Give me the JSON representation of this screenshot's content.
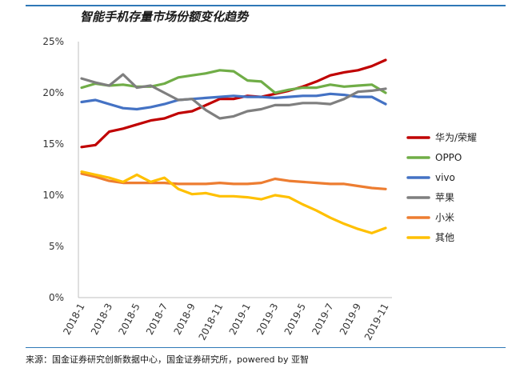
{
  "header": {
    "title": "智能手机存量市场份额变化趋势"
  },
  "footer": {
    "source": "来源：国金证券研究创新数据中心，国金证券研究所，powered by 亚智"
  },
  "chart_data": {
    "type": "line",
    "title": "智能手机存量市场份额变化趋势",
    "xlabel": "",
    "ylabel": "",
    "ylim": [
      0,
      25
    ],
    "y_ticks": [
      "0%",
      "5%",
      "10%",
      "15%",
      "20%",
      "25%"
    ],
    "y_tick_values": [
      0,
      5,
      10,
      15,
      20,
      25
    ],
    "x": [
      "2018-1",
      "2018-2",
      "2018-3",
      "2018-4",
      "2018-5",
      "2018-6",
      "2018-7",
      "2018-8",
      "2018-9",
      "2018-10",
      "2018-11",
      "2018-12",
      "2019-1",
      "2019-2",
      "2019-3",
      "2019-4",
      "2019-5",
      "2019-6",
      "2019-7",
      "2019-8",
      "2019-9",
      "2019-10",
      "2019-11"
    ],
    "x_tick_labels": [
      "2018-1",
      "2018-3",
      "2018-5",
      "2018-7",
      "2018-9",
      "2018-11",
      "2019-1",
      "2019-3",
      "2019-5",
      "2019-7",
      "2019-9",
      "2019-11"
    ],
    "grid": false,
    "legend_position": "right",
    "series": [
      {
        "name": "华为/荣耀",
        "color": "#c00000",
        "values": [
          14.7,
          14.9,
          16.2,
          16.5,
          16.9,
          17.3,
          17.5,
          18.0,
          18.2,
          18.8,
          19.4,
          19.4,
          19.7,
          19.6,
          19.9,
          20.2,
          20.6,
          21.1,
          21.7,
          22.0,
          22.2,
          22.6,
          23.2
        ]
      },
      {
        "name": "OPPO",
        "color": "#70ad47",
        "values": [
          20.5,
          20.9,
          20.7,
          20.8,
          20.6,
          20.6,
          20.9,
          21.5,
          21.7,
          21.9,
          22.2,
          22.1,
          21.2,
          21.1,
          20.0,
          20.3,
          20.5,
          20.5,
          20.8,
          20.6,
          20.7,
          20.8,
          20.0
        ]
      },
      {
        "name": "vivo",
        "color": "#4472c4",
        "values": [
          19.1,
          19.3,
          18.9,
          18.5,
          18.4,
          18.6,
          18.9,
          19.3,
          19.4,
          19.5,
          19.6,
          19.7,
          19.6,
          19.6,
          19.5,
          19.6,
          19.7,
          19.7,
          19.9,
          19.8,
          19.6,
          19.6,
          18.9
        ]
      },
      {
        "name": "苹果",
        "color": "#7f7f7f",
        "values": [
          21.4,
          21.0,
          20.7,
          21.8,
          20.5,
          20.7,
          20.0,
          19.3,
          19.4,
          18.3,
          17.5,
          17.7,
          18.2,
          18.4,
          18.8,
          18.8,
          19.0,
          19.0,
          18.9,
          19.4,
          20.1,
          20.2,
          20.4
        ]
      },
      {
        "name": "小米",
        "color": "#ed7d31",
        "values": [
          12.1,
          11.8,
          11.4,
          11.2,
          11.2,
          11.2,
          11.2,
          11.1,
          11.1,
          11.1,
          11.2,
          11.1,
          11.1,
          11.2,
          11.6,
          11.4,
          11.3,
          11.2,
          11.1,
          11.1,
          10.9,
          10.7,
          10.6
        ]
      },
      {
        "name": "其他",
        "color": "#ffc000",
        "values": [
          12.3,
          12.0,
          11.7,
          11.3,
          12.0,
          11.3,
          11.7,
          10.6,
          10.1,
          10.2,
          9.9,
          9.9,
          9.8,
          9.6,
          10.0,
          9.8,
          9.1,
          8.5,
          7.8,
          7.2,
          6.7,
          6.3,
          6.8
        ]
      }
    ]
  }
}
